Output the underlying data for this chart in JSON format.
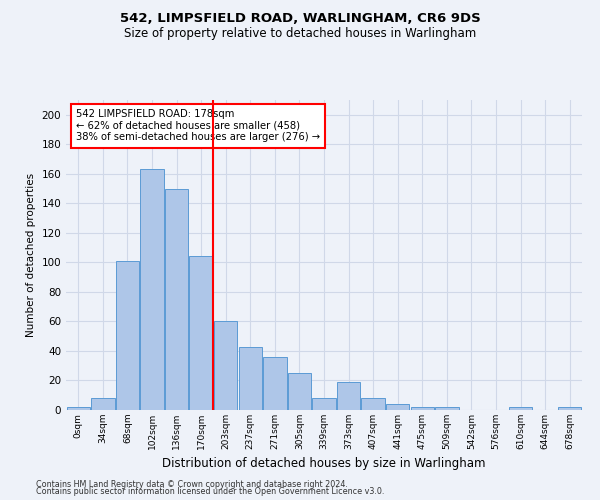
{
  "title1": "542, LIMPSFIELD ROAD, WARLINGHAM, CR6 9DS",
  "title2": "Size of property relative to detached houses in Warlingham",
  "xlabel": "Distribution of detached houses by size in Warlingham",
  "ylabel": "Number of detached properties",
  "footnote1": "Contains HM Land Registry data © Crown copyright and database right 2024.",
  "footnote2": "Contains public sector information licensed under the Open Government Licence v3.0.",
  "bin_labels": [
    "0sqm",
    "34sqm",
    "68sqm",
    "102sqm",
    "136sqm",
    "170sqm",
    "203sqm",
    "237sqm",
    "271sqm",
    "305sqm",
    "339sqm",
    "373sqm",
    "407sqm",
    "441sqm",
    "475sqm",
    "509sqm",
    "542sqm",
    "576sqm",
    "610sqm",
    "644sqm",
    "678sqm"
  ],
  "bar_heights": [
    2,
    8,
    101,
    163,
    150,
    104,
    60,
    43,
    36,
    25,
    8,
    19,
    8,
    4,
    2,
    2,
    0,
    0,
    2,
    0,
    2
  ],
  "bar_color": "#aec6e8",
  "bar_edge_color": "#5b9bd5",
  "grid_color": "#d0d8e8",
  "ref_line_color": "red",
  "annotation_text": "542 LIMPSFIELD ROAD: 178sqm\n← 62% of detached houses are smaller (458)\n38% of semi-detached houses are larger (276) →",
  "annotation_box_color": "white",
  "annotation_box_edge_color": "red",
  "ylim": [
    0,
    210
  ],
  "yticks": [
    0,
    20,
    40,
    60,
    80,
    100,
    120,
    140,
    160,
    180,
    200
  ],
  "background_color": "#eef2f9"
}
